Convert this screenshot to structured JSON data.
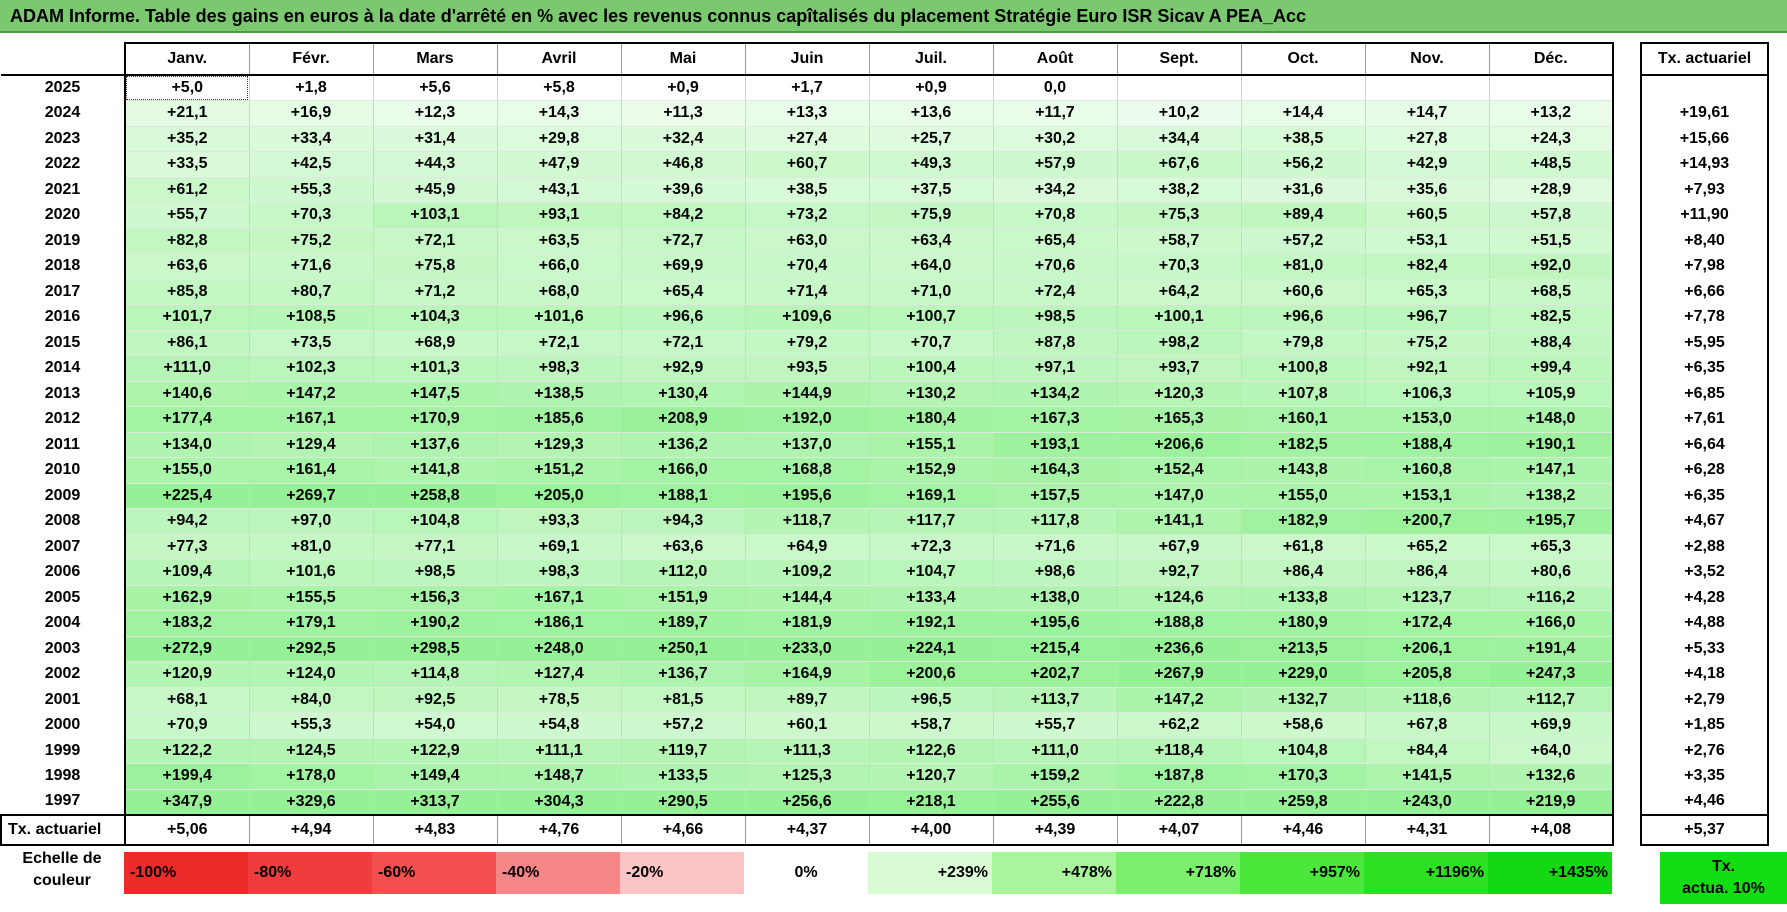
{
  "title": "ADAM Informe. Table des gains en euros à la date d'arrêté en % avec les revenus connus capîtalisés du placement Stratégie Euro ISR Sicav A PEA_Acc",
  "months": [
    "Janv.",
    "Févr.",
    "Mars",
    "Avril",
    "Mai",
    "Juin",
    "Juil.",
    "Août",
    "Sept.",
    "Oct.",
    "Nov.",
    "Déc."
  ],
  "tx_header": "Tx. actuariel",
  "rows": [
    {
      "year": "2025",
      "values": [
        "+5,0",
        "+1,8",
        "+5,6",
        "+5,8",
        "+0,9",
        "+1,7",
        "+0,9",
        "0,0",
        "",
        "",
        "",
        ""
      ],
      "tx": ""
    },
    {
      "year": "2024",
      "values": [
        "+21,1",
        "+16,9",
        "+12,3",
        "+14,3",
        "+11,3",
        "+13,3",
        "+13,6",
        "+11,7",
        "+10,2",
        "+14,4",
        "+14,7",
        "+13,2"
      ],
      "tx": "+19,61"
    },
    {
      "year": "2023",
      "values": [
        "+35,2",
        "+33,4",
        "+31,4",
        "+29,8",
        "+32,4",
        "+27,4",
        "+25,7",
        "+30,2",
        "+34,4",
        "+38,5",
        "+27,8",
        "+24,3"
      ],
      "tx": "+15,66"
    },
    {
      "year": "2022",
      "values": [
        "+33,5",
        "+42,5",
        "+44,3",
        "+47,9",
        "+46,8",
        "+60,7",
        "+49,3",
        "+57,9",
        "+67,6",
        "+56,2",
        "+42,9",
        "+48,5"
      ],
      "tx": "+14,93"
    },
    {
      "year": "2021",
      "values": [
        "+61,2",
        "+55,3",
        "+45,9",
        "+43,1",
        "+39,6",
        "+38,5",
        "+37,5",
        "+34,2",
        "+38,2",
        "+31,6",
        "+35,6",
        "+28,9"
      ],
      "tx": "+7,93"
    },
    {
      "year": "2020",
      "values": [
        "+55,7",
        "+70,3",
        "+103,1",
        "+93,1",
        "+84,2",
        "+73,2",
        "+75,9",
        "+70,8",
        "+75,3",
        "+89,4",
        "+60,5",
        "+57,8"
      ],
      "tx": "+11,90"
    },
    {
      "year": "2019",
      "values": [
        "+82,8",
        "+75,2",
        "+72,1",
        "+63,5",
        "+72,7",
        "+63,0",
        "+63,4",
        "+65,4",
        "+58,7",
        "+57,2",
        "+53,1",
        "+51,5"
      ],
      "tx": "+8,40"
    },
    {
      "year": "2018",
      "values": [
        "+63,6",
        "+71,6",
        "+75,8",
        "+66,0",
        "+69,9",
        "+70,4",
        "+64,0",
        "+70,6",
        "+70,3",
        "+81,0",
        "+82,4",
        "+92,0"
      ],
      "tx": "+7,98"
    },
    {
      "year": "2017",
      "values": [
        "+85,8",
        "+80,7",
        "+71,2",
        "+68,0",
        "+65,4",
        "+71,4",
        "+71,0",
        "+72,4",
        "+64,2",
        "+60,6",
        "+65,3",
        "+68,5"
      ],
      "tx": "+6,66"
    },
    {
      "year": "2016",
      "values": [
        "+101,7",
        "+108,5",
        "+104,3",
        "+101,6",
        "+96,6",
        "+109,6",
        "+100,7",
        "+98,5",
        "+100,1",
        "+96,6",
        "+96,7",
        "+82,5"
      ],
      "tx": "+7,78"
    },
    {
      "year": "2015",
      "values": [
        "+86,1",
        "+73,5",
        "+68,9",
        "+72,1",
        "+72,1",
        "+79,2",
        "+70,7",
        "+87,8",
        "+98,2",
        "+79,8",
        "+75,2",
        "+88,4"
      ],
      "tx": "+5,95"
    },
    {
      "year": "2014",
      "values": [
        "+111,0",
        "+102,3",
        "+101,3",
        "+98,3",
        "+92,9",
        "+93,5",
        "+100,4",
        "+97,1",
        "+93,7",
        "+100,8",
        "+92,1",
        "+99,4"
      ],
      "tx": "+6,35"
    },
    {
      "year": "2013",
      "values": [
        "+140,6",
        "+147,2",
        "+147,5",
        "+138,5",
        "+130,4",
        "+144,9",
        "+130,2",
        "+134,2",
        "+120,3",
        "+107,8",
        "+106,3",
        "+105,9"
      ],
      "tx": "+6,85"
    },
    {
      "year": "2012",
      "values": [
        "+177,4",
        "+167,1",
        "+170,9",
        "+185,6",
        "+208,9",
        "+192,0",
        "+180,4",
        "+167,3",
        "+165,3",
        "+160,1",
        "+153,0",
        "+148,0"
      ],
      "tx": "+7,61"
    },
    {
      "year": "2011",
      "values": [
        "+134,0",
        "+129,4",
        "+137,6",
        "+129,3",
        "+136,2",
        "+137,0",
        "+155,1",
        "+193,1",
        "+206,6",
        "+182,5",
        "+188,4",
        "+190,1"
      ],
      "tx": "+6,64"
    },
    {
      "year": "2010",
      "values": [
        "+155,0",
        "+161,4",
        "+141,8",
        "+151,2",
        "+166,0",
        "+168,8",
        "+152,9",
        "+164,3",
        "+152,4",
        "+143,8",
        "+160,8",
        "+147,1"
      ],
      "tx": "+6,28"
    },
    {
      "year": "2009",
      "values": [
        "+225,4",
        "+269,7",
        "+258,8",
        "+205,0",
        "+188,1",
        "+195,6",
        "+169,1",
        "+157,5",
        "+147,0",
        "+155,0",
        "+153,1",
        "+138,2"
      ],
      "tx": "+6,35"
    },
    {
      "year": "2008",
      "values": [
        "+94,2",
        "+97,0",
        "+104,8",
        "+93,3",
        "+94,3",
        "+118,7",
        "+117,7",
        "+117,8",
        "+141,1",
        "+182,9",
        "+200,7",
        "+195,7"
      ],
      "tx": "+4,67"
    },
    {
      "year": "2007",
      "values": [
        "+77,3",
        "+81,0",
        "+77,1",
        "+69,1",
        "+63,6",
        "+64,9",
        "+72,3",
        "+71,6",
        "+67,9",
        "+61,8",
        "+65,2",
        "+65,3"
      ],
      "tx": "+2,88"
    },
    {
      "year": "2006",
      "values": [
        "+109,4",
        "+101,6",
        "+98,5",
        "+98,3",
        "+112,0",
        "+109,2",
        "+104,7",
        "+98,6",
        "+92,7",
        "+86,4",
        "+86,4",
        "+80,6"
      ],
      "tx": "+3,52"
    },
    {
      "year": "2005",
      "values": [
        "+162,9",
        "+155,5",
        "+156,3",
        "+167,1",
        "+151,9",
        "+144,4",
        "+133,4",
        "+138,0",
        "+124,6",
        "+133,8",
        "+123,7",
        "+116,2"
      ],
      "tx": "+4,28"
    },
    {
      "year": "2004",
      "values": [
        "+183,2",
        "+179,1",
        "+190,2",
        "+186,1",
        "+189,7",
        "+181,9",
        "+192,1",
        "+195,6",
        "+188,8",
        "+180,9",
        "+172,4",
        "+166,0"
      ],
      "tx": "+4,88"
    },
    {
      "year": "2003",
      "values": [
        "+272,9",
        "+292,5",
        "+298,5",
        "+248,0",
        "+250,1",
        "+233,0",
        "+224,1",
        "+215,4",
        "+236,6",
        "+213,5",
        "+206,1",
        "+191,4"
      ],
      "tx": "+5,33"
    },
    {
      "year": "2002",
      "values": [
        "+120,9",
        "+124,0",
        "+114,8",
        "+127,4",
        "+136,7",
        "+164,9",
        "+200,6",
        "+202,7",
        "+267,9",
        "+229,0",
        "+205,8",
        "+247,3"
      ],
      "tx": "+4,18"
    },
    {
      "year": "2001",
      "values": [
        "+68,1",
        "+84,0",
        "+92,5",
        "+78,5",
        "+81,5",
        "+89,7",
        "+96,5",
        "+113,7",
        "+147,2",
        "+132,7",
        "+118,6",
        "+112,7"
      ],
      "tx": "+2,79"
    },
    {
      "year": "2000",
      "values": [
        "+70,9",
        "+55,3",
        "+54,0",
        "+54,8",
        "+57,2",
        "+60,1",
        "+58,7",
        "+55,7",
        "+62,2",
        "+58,6",
        "+67,8",
        "+69,9"
      ],
      "tx": "+1,85"
    },
    {
      "year": "1999",
      "values": [
        "+122,2",
        "+124,5",
        "+122,9",
        "+111,1",
        "+119,7",
        "+111,3",
        "+122,6",
        "+111,0",
        "+118,4",
        "+104,8",
        "+84,4",
        "+64,0"
      ],
      "tx": "+2,76"
    },
    {
      "year": "1998",
      "values": [
        "+199,4",
        "+178,0",
        "+149,4",
        "+148,7",
        "+133,5",
        "+125,3",
        "+120,7",
        "+159,2",
        "+187,8",
        "+170,3",
        "+141,5",
        "+132,6"
      ],
      "tx": "+3,35"
    },
    {
      "year": "1997",
      "values": [
        "+347,9",
        "+329,6",
        "+313,7",
        "+304,3",
        "+290,5",
        "+256,6",
        "+218,1",
        "+255,6",
        "+222,8",
        "+259,8",
        "+243,0",
        "+219,9"
      ],
      "tx": "+4,46"
    }
  ],
  "footer": {
    "label": "Tx. actuariel",
    "values": [
      "+5,06",
      "+4,94",
      "+4,83",
      "+4,76",
      "+4,66",
      "+4,37",
      "+4,00",
      "+4,39",
      "+4,07",
      "+4,46",
      "+4,31",
      "+4,08"
    ],
    "tx": "+5,37"
  },
  "scale": {
    "label_line1": "Echelle de",
    "label_line2": "couleur",
    "cells": [
      {
        "text": "-100%",
        "color": "#ee2b2b",
        "kind": "neg"
      },
      {
        "text": "-80%",
        "color": "#f03c3c",
        "kind": "neg"
      },
      {
        "text": "-60%",
        "color": "#f34f4f",
        "kind": "neg"
      },
      {
        "text": "-40%",
        "color": "#f78787",
        "kind": "neg"
      },
      {
        "text": "-20%",
        "color": "#fcc4c4",
        "kind": "neg"
      },
      {
        "text": "0%",
        "color": "#ffffff",
        "kind": "zero"
      },
      {
        "text": "+239%",
        "color": "#d9fbd4",
        "kind": "pos"
      },
      {
        "text": "+478%",
        "color": "#a8f59c",
        "kind": "pos"
      },
      {
        "text": "+718%",
        "color": "#7cef6c",
        "kind": "pos"
      },
      {
        "text": "+957%",
        "color": "#4be83b",
        "kind": "pos"
      },
      {
        "text": "+1196%",
        "color": "#2ee024",
        "kind": "pos"
      },
      {
        "text": "+1435%",
        "color": "#14d814",
        "kind": "pos"
      }
    ],
    "tx_line1": "Tx.",
    "tx_line2": "actua. 10%",
    "tx_color": "#11dd11"
  }
}
